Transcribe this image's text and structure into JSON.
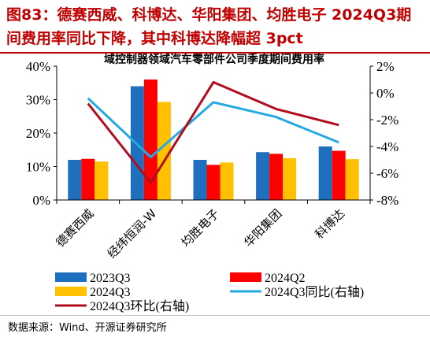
{
  "header": {
    "title": "图83：德赛西威、科博达、华阳集团、均胜电子 2024Q3期间费用率同比下降，其中科博达降幅超 3pct"
  },
  "footer": {
    "source": "数据来源：Wind、开源证券研究所"
  },
  "chart_data": {
    "type": "bar",
    "title": "域控制器领域汽车零部件公司季度期间费用率",
    "categories": [
      "德赛西威",
      "经纬恒润-W",
      "均胜电子",
      "华阳集团",
      "科博达"
    ],
    "y_left": {
      "ticks": [
        "0%",
        "10%",
        "20%",
        "30%",
        "40%"
      ],
      "ylim": [
        0,
        40
      ]
    },
    "y_right": {
      "ticks": [
        "2%",
        "0%",
        "-2%",
        "-4%",
        "-6%",
        "-8%"
      ],
      "ylim": [
        -8,
        2
      ]
    },
    "series": [
      {
        "name": "2023Q3",
        "kind": "bar",
        "axis": "left",
        "color": "#1f6fbf",
        "values": [
          12.0,
          34.0,
          12.0,
          14.3,
          16.0
        ]
      },
      {
        "name": "2024Q2",
        "kind": "bar",
        "axis": "left",
        "color": "#ff0000",
        "values": [
          12.3,
          36.0,
          10.5,
          13.8,
          14.7
        ]
      },
      {
        "name": "2024Q3",
        "kind": "bar",
        "axis": "left",
        "color": "#ffc000",
        "values": [
          11.5,
          29.3,
          11.2,
          12.5,
          12.2
        ]
      },
      {
        "name": "2024Q3同比(右轴)",
        "kind": "line",
        "axis": "right",
        "color": "#22aae1",
        "values": [
          -0.4,
          -4.8,
          -0.7,
          -1.8,
          -3.7
        ]
      },
      {
        "name": "2024Q3环比(右轴)",
        "kind": "line",
        "axis": "right",
        "color": "#b00e1e",
        "values": [
          -0.8,
          -6.7,
          0.8,
          -1.2,
          -2.4
        ]
      }
    ],
    "grid": false,
    "legend_position": "bottom"
  }
}
